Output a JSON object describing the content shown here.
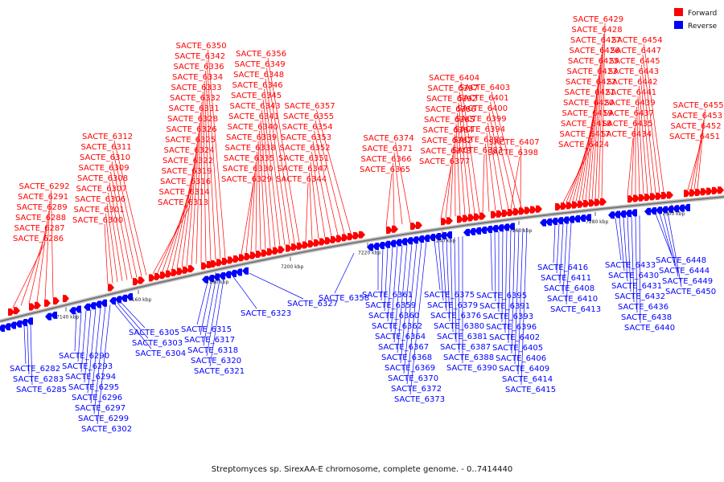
{
  "title": "Streptomyces sp. SirexAA-E chromosome, complete genome. - 0..7414440",
  "legend": [
    {
      "label": "Forward",
      "color": "#ff0000"
    },
    {
      "label": "Reverse",
      "color": "#0000ff"
    }
  ],
  "colors": {
    "forward": "#ff0000",
    "reverse": "#0000ff",
    "backbone": "#888888"
  },
  "ticks": [
    "7140 kbp",
    "7160 kbp",
    "7180 kbp",
    "7200 kbp",
    "7220 kbp",
    "7240 kbp",
    "7260 kbp",
    "7280 kbp",
    "7300 kbp"
  ],
  "forward_groups": [
    [
      "SACTE_6286",
      "SACTE_6287",
      "SACTE_6288",
      "SACTE_6289",
      "SACTE_6291",
      "SACTE_6292"
    ],
    [
      "SACTE_6300",
      "SACTE_6301",
      "SACTE_6306",
      "SACTE_6307",
      "SACTE_6308",
      "SACTE_6309",
      "SACTE_6310",
      "SACTE_6311",
      "SACTE_6312"
    ],
    [
      "SACTE_6313",
      "SACTE_6314",
      "SACTE_6316",
      "SACTE_6319",
      "SACTE_6322",
      "SACTE_6324",
      "SACTE_6325",
      "SACTE_6326",
      "SACTE_6328",
      "SACTE_6331",
      "SACTE_6332",
      "SACTE_6333",
      "SACTE_6334",
      "SACTE_6336",
      "SACTE_6342",
      "SACTE_6350"
    ],
    [
      "SACTE_6329",
      "SACTE_6330",
      "SACTE_6335",
      "SACTE_6338",
      "SACTE_6339",
      "SACTE_6340",
      "SACTE_6341",
      "SACTE_6343",
      "SACTE_6345",
      "SACTE_6346",
      "SACTE_6348",
      "SACTE_6349",
      "SACTE_6356"
    ],
    [
      "SACTE_6344",
      "SACTE_6347",
      "SACTE_6351",
      "SACTE_6352",
      "SACTE_6353",
      "SACTE_6354",
      "SACTE_6355",
      "SACTE_6357"
    ],
    [
      "SACTE_6365",
      "SACTE_6366",
      "SACTE_6371",
      "SACTE_6374"
    ],
    [
      "SACTE_6377",
      "SACTE_6378",
      "SACTE_6382",
      "SACTE_6384",
      "SACTE_6385",
      "SACTE_6386",
      "SACTE_6392",
      "SACTE_6397",
      "SACTE_6404"
    ],
    [
      "SACTE_6383",
      "SACTE_6389",
      "SACTE_6394",
      "SACTE_6399",
      "SACTE_6400",
      "SACTE_6401",
      "SACTE_6403"
    ],
    [
      "SACTE_6398",
      "SACTE_6407"
    ],
    [
      "SACTE_6424",
      "SACTE_6417",
      "SACTE_6418",
      "SACTE_6419",
      "SACTE_6420",
      "SACTE_6421",
      "SACTE_6422",
      "SACTE_6423",
      "SACTE_6425",
      "SACTE_6426",
      "SACTE_6427",
      "SACTE_6428",
      "SACTE_6429"
    ],
    [
      "SACTE_6434",
      "SACTE_6435",
      "SACTE_6437",
      "SACTE_6439",
      "SACTE_6441",
      "SACTE_6442",
      "SACTE_6443",
      "SACTE_6445",
      "SACTE_6447",
      "SACTE_6454"
    ],
    [
      "SACTE_6451",
      "SACTE_6452",
      "SACTE_6453",
      "SACTE_6455"
    ]
  ],
  "reverse_groups": [
    [
      "SACTE_6282",
      "SACTE_6283",
      "SACTE_6285"
    ],
    [
      "SACTE_6290",
      "SACTE_6293",
      "SACTE_6294",
      "SACTE_6295",
      "SACTE_6296",
      "SACTE_6297",
      "SACTE_6299",
      "SACTE_6302"
    ],
    [
      "SACTE_6305",
      "SACTE_6303",
      "SACTE_6304"
    ],
    [
      "SACTE_6315",
      "SACTE_6317",
      "SACTE_6318",
      "SACTE_6320",
      "SACTE_6321"
    ],
    [
      "SACTE_6323"
    ],
    [
      "SACTE_6327"
    ],
    [
      "SACTE_6358"
    ],
    [
      "SACTE_6361",
      "SACTE_6359",
      "SACTE_6360",
      "SACTE_6362",
      "SACTE_6364",
      "SACTE_6367",
      "SACTE_6368",
      "SACTE_6369",
      "SACTE_6370",
      "SACTE_6372",
      "SACTE_6373"
    ],
    [
      "SACTE_6375",
      "SACTE_6379",
      "SACTE_6376",
      "SACTE_6380",
      "SACTE_6381",
      "SACTE_6387",
      "SACTE_6388",
      "SACTE_6390"
    ],
    [
      "SACTE_6395",
      "SACTE_6391",
      "SACTE_6393",
      "SACTE_6396",
      "SACTE_6402",
      "SACTE_6405",
      "SACTE_6406",
      "SACTE_6409",
      "SACTE_6414",
      "SACTE_6415"
    ],
    [
      "SACTE_6416",
      "SACTE_6411",
      "SACTE_6408",
      "SACTE_6410",
      "SACTE_6413"
    ],
    [
      "SACTE_6433",
      "SACTE_6430",
      "SACTE_6431",
      "SACTE_6432",
      "SACTE_6436",
      "SACTE_6438",
      "SACTE_6440"
    ],
    [
      "SACTE_6448",
      "SACTE_6444",
      "SACTE_6449",
      "SACTE_6450"
    ]
  ]
}
